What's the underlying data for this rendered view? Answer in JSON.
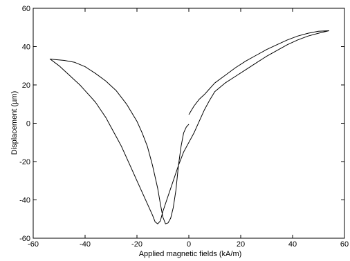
{
  "chart_data": {
    "type": "line",
    "title": "",
    "xlabel": "Applied magnetic fields (kA/m)",
    "ylabel": "Displacement (µm)",
    "xlim": [
      -60,
      60
    ],
    "ylim": [
      -60,
      60
    ],
    "xticks": [
      -60,
      -40,
      -20,
      0,
      20,
      40,
      60
    ],
    "yticks": [
      -60,
      -40,
      -20,
      0,
      20,
      40,
      60
    ],
    "xtick_labels": [
      "-60",
      "-40",
      "-20",
      "0",
      "20",
      "40",
      "60"
    ],
    "ytick_labels": [
      "-60",
      "-40",
      "-20",
      "0",
      "20",
      "40",
      "60"
    ],
    "grid": false,
    "series": [
      {
        "values": [
          [
            0,
            4.5
          ],
          [
            2,
            9
          ],
          [
            4,
            12.5
          ],
          [
            6,
            15
          ],
          [
            8,
            18
          ],
          [
            10,
            21
          ],
          [
            14,
            25
          ],
          [
            18,
            29
          ],
          [
            22,
            32.5
          ],
          [
            26,
            35.5
          ],
          [
            30,
            38.5
          ],
          [
            34,
            41
          ],
          [
            38,
            43.5
          ],
          [
            42,
            45.5
          ],
          [
            46,
            47
          ],
          [
            50,
            48
          ],
          [
            54,
            48.3
          ],
          [
            50,
            47
          ],
          [
            46,
            45.5
          ],
          [
            42,
            43.5
          ],
          [
            38,
            41
          ],
          [
            34,
            38
          ],
          [
            30,
            35
          ],
          [
            26,
            31.5
          ],
          [
            22,
            28
          ],
          [
            18,
            24.5
          ],
          [
            14,
            21
          ],
          [
            10,
            16.5
          ],
          [
            8,
            12
          ],
          [
            6,
            7
          ],
          [
            4,
            1
          ],
          [
            2,
            -5
          ],
          [
            0,
            -10
          ],
          [
            -2,
            -15
          ],
          [
            -4,
            -22
          ],
          [
            -6,
            -30
          ],
          [
            -8,
            -38
          ],
          [
            -10,
            -46
          ],
          [
            -11,
            -51
          ],
          [
            -12,
            -52.5
          ],
          [
            -13,
            -51.5
          ],
          [
            -14,
            -48
          ],
          [
            -16,
            -42
          ],
          [
            -18,
            -36
          ],
          [
            -20,
            -30
          ],
          [
            -22,
            -24
          ],
          [
            -24,
            -18
          ],
          [
            -26,
            -12
          ],
          [
            -28,
            -7
          ],
          [
            -30,
            -2
          ],
          [
            -32,
            3
          ],
          [
            -34,
            7
          ],
          [
            -36,
            11
          ],
          [
            -38,
            14
          ],
          [
            -40,
            17
          ],
          [
            -42,
            20
          ],
          [
            -44,
            22.5
          ],
          [
            -46,
            25
          ],
          [
            -48,
            27.5
          ],
          [
            -50,
            30
          ],
          [
            -52,
            32
          ],
          [
            -53.5,
            33.5
          ],
          [
            -52,
            33.3
          ],
          [
            -48,
            32.8
          ],
          [
            -44,
            31.8
          ],
          [
            -40,
            29.5
          ],
          [
            -36,
            26
          ],
          [
            -32,
            22
          ],
          [
            -28,
            17
          ],
          [
            -24,
            10
          ],
          [
            -20,
            1
          ],
          [
            -18,
            -5
          ],
          [
            -16,
            -12
          ],
          [
            -14,
            -22
          ],
          [
            -12,
            -34
          ],
          [
            -11,
            -42
          ],
          [
            -10,
            -49
          ],
          [
            -9,
            -52.5
          ],
          [
            -8,
            -52
          ],
          [
            -7,
            -49.5
          ],
          [
            -6,
            -44
          ],
          [
            -5,
            -35
          ],
          [
            -4,
            -22
          ],
          [
            -3,
            -12
          ],
          [
            -2,
            -5
          ],
          [
            -1,
            -2
          ],
          [
            0,
            -0.5
          ]
        ]
      }
    ]
  }
}
